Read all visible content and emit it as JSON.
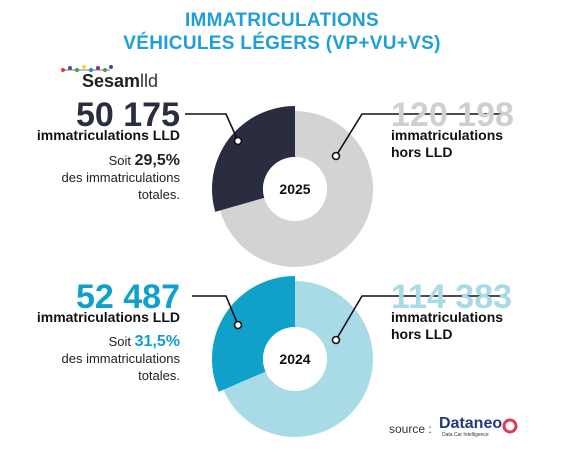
{
  "header": {
    "title_line1": "IMMATRICULATIONS",
    "title_line2": "VÉHICULES LÉGERS (VP+VU+VS)"
  },
  "logo": {
    "brand": "Sesam",
    "suffix": "lld"
  },
  "panels": [
    {
      "year": "2025",
      "lld_value": "50 175",
      "lld_label": "immatriculations LLD",
      "share_prefix": "Soit",
      "share_pct": "29,5%",
      "share_suffix_1": "des immatriculations",
      "share_suffix_2": "totales.",
      "hors_value": "120 198",
      "hors_label_1": "immatriculations",
      "hors_label_2": "hors LLD"
    },
    {
      "year": "2024",
      "lld_value": "52 487",
      "lld_label": "immatriculations LLD",
      "share_prefix": "Soit",
      "share_pct": "31,5%",
      "share_suffix_1": "des immatriculations",
      "share_suffix_2": "totales.",
      "hors_value": "114 383",
      "hors_label_1": "immatriculations",
      "hors_label_2": "hors LLD"
    }
  ],
  "source": {
    "label": "source :",
    "brand": "Dataneo",
    "tagline": "Data Car Intelligence"
  },
  "colors": {
    "title": "#1f9ed8",
    "lld_2025": "#2a2d40",
    "hors_2025": "#d3d3d3",
    "lld_2024": "#0fa1ca",
    "hors_2024": "#a9dbe6"
  },
  "chart_data": [
    {
      "type": "pie",
      "center_label": "2025",
      "categories": [
        "immatriculations LLD",
        "immatriculations hors LLD"
      ],
      "values": [
        50175,
        120198
      ]
    },
    {
      "type": "pie",
      "center_label": "2024",
      "categories": [
        "immatriculations LLD",
        "immatriculations hors LLD"
      ],
      "values": [
        52487,
        114383
      ]
    }
  ]
}
